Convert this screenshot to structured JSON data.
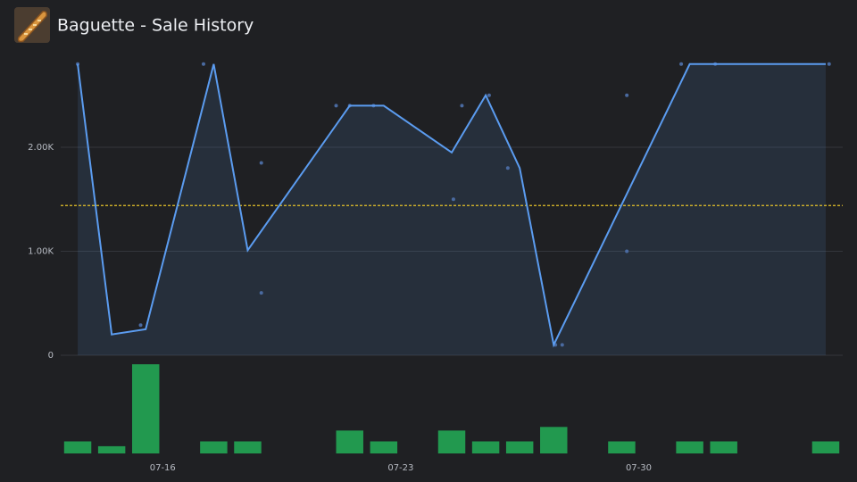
{
  "chart_data": {
    "type": "line",
    "title": "Baguette - Sale History",
    "x": [
      13.5,
      14.5,
      15.5,
      17.5,
      18.5,
      21.5,
      22.5,
      24.5,
      25.5,
      26.5,
      27.5,
      31.5,
      32.5,
      35.5
    ],
    "values": [
      2800,
      200,
      250,
      2800,
      1010,
      2400,
      2400,
      1950,
      2500,
      1800,
      100,
      2800,
      2800,
      2800
    ],
    "color": "#5b9cf0",
    "area_color": "#5b9cf0",
    "sales": {
      "x": [
        13.5,
        15.35,
        17.2,
        18.9,
        18.9,
        21.1,
        21.5,
        22.2,
        24.55,
        24.8,
        25.6,
        26.15,
        27.55,
        27.75,
        29.65,
        29.65,
        31.25,
        32.25,
        35.6
      ],
      "values": [
        2800,
        290,
        2800,
        1850,
        600,
        2400,
        2400,
        2400,
        1500,
        2400,
        2500,
        1800,
        100,
        100,
        2500,
        1000,
        2800,
        2800,
        2800
      ],
      "color": "#4a6aa0"
    },
    "average": 1440,
    "average_color": "#e6c229",
    "volume": {
      "x": [
        13.5,
        14.5,
        15.5,
        17.5,
        18.5,
        21.5,
        22.5,
        24.5,
        25.5,
        26.5,
        27.5,
        29.5,
        31.5,
        32.5,
        35.5
      ],
      "values": [
        1,
        0.6,
        7.4,
        1,
        1,
        1.9,
        1,
        1.9,
        1,
        1,
        2.2,
        1,
        1,
        1,
        1
      ],
      "ylim": [
        0,
        8
      ],
      "color": "#22994f"
    },
    "xlim": [
      13,
      36
    ],
    "xticks": [
      {
        "value": 16,
        "label": "07-16"
      },
      {
        "value": 23,
        "label": "07-23"
      },
      {
        "value": 30,
        "label": "07-30"
      }
    ],
    "ylim": [
      0,
      3000
    ],
    "yticks": [
      0,
      {
        "value": 1000,
        "label": "1.00K"
      },
      {
        "value": 2000,
        "label": "2.00K"
      }
    ],
    "grid": true
  }
}
